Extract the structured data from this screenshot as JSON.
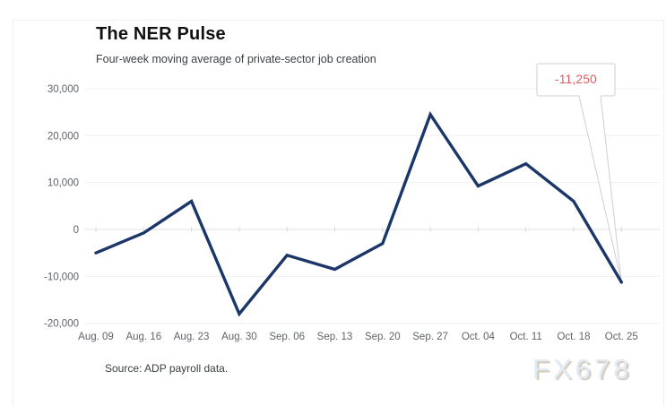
{
  "header": {
    "title": "The NER Pulse",
    "subtitle": "Four-week moving average of private-sector job creation"
  },
  "footer": {
    "source": "Source: ADP payroll data.",
    "watermark": "FX678"
  },
  "chart_data": {
    "type": "line",
    "title": "The NER Pulse",
    "subtitle": "Four-week moving average of private-sector job creation",
    "categories": [
      "Aug. 09",
      "Aug. 16",
      "Aug. 23",
      "Aug. 30",
      "Sep. 06",
      "Sep. 13",
      "Sep. 20",
      "Sep. 27",
      "Oct. 04",
      "Oct. 11",
      "Oct. 18",
      "Oct. 25"
    ],
    "values": [
      -5000,
      -750,
      6000,
      -18000,
      -5500,
      -8500,
      -3000,
      24500,
      9250,
      14000,
      6000,
      -11250
    ],
    "xlabel": "",
    "ylabel": "",
    "ylim": [
      -20000,
      30000
    ],
    "yticks": [
      30000,
      20000,
      10000,
      0,
      -10000,
      -20000
    ],
    "ytick_labels": [
      "30,000",
      "20,000",
      "10,000",
      "0",
      "-10,000",
      "-20,000"
    ],
    "grid": true,
    "legend": "none",
    "line_color": "#1b3668",
    "gridline_color": "#f0f0f0",
    "zero_line_color": "#e2e2e2",
    "axis_label_color": "#5f6368",
    "annotation": {
      "label": "-11,250",
      "value": -11250,
      "category": "Oct. 25",
      "text_color": "#d85c5c",
      "box_border_color": "#cfcfcf"
    }
  }
}
